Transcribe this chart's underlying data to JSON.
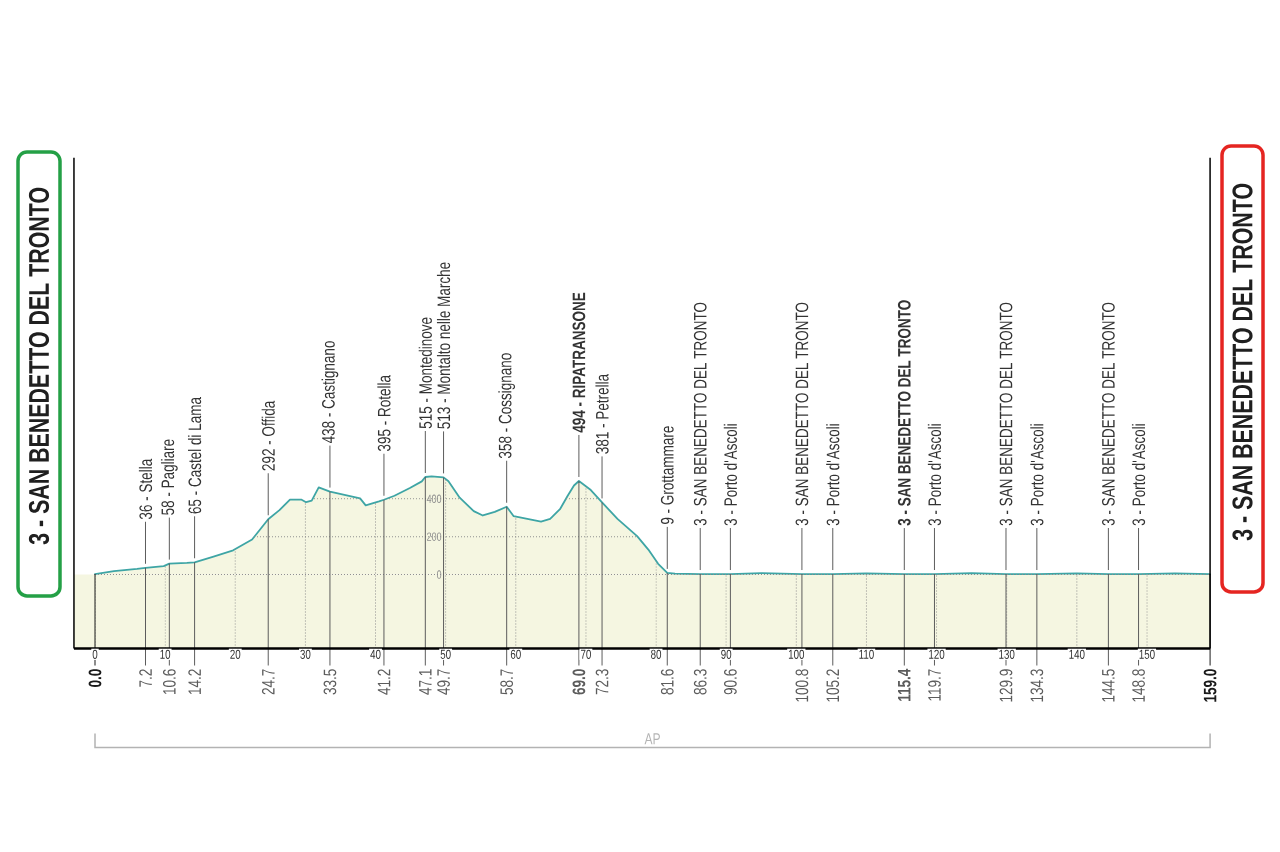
{
  "chart_data": {
    "type": "area",
    "x": [
      0,
      2.7,
      6.0,
      7.2,
      9.8,
      10.6,
      13.1,
      14.2,
      16.9,
      19.7,
      22.4,
      24.7,
      26.3,
      27.8,
      29.4,
      30.1,
      30.9,
      31.9,
      33.5,
      37.8,
      38.6,
      40.5,
      41.2,
      42.7,
      44.9,
      46.6,
      47.1,
      48.0,
      49.7,
      50.4,
      52.0,
      54.0,
      55.3,
      57.0,
      58.7,
      59.7,
      63.6,
      64.9,
      66.3,
      67.4,
      68.3,
      69.0,
      70.7,
      72.3,
      74.5,
      77.3,
      78.9,
      80.3,
      81.6,
      82.7,
      86.3,
      90.6,
      95.0,
      100.8,
      105.2,
      110.0,
      115.4,
      119.7,
      125.0,
      129.9,
      134.3,
      140.0,
      144.5,
      148.8,
      154.0,
      159.0
    ],
    "values": [
      3,
      18,
      30,
      36,
      45,
      58,
      62,
      65,
      95,
      128,
      185,
      292,
      340,
      396,
      396,
      382,
      390,
      460,
      438,
      402,
      365,
      386,
      395,
      416,
      457,
      492,
      515,
      518,
      513,
      493,
      406,
      335,
      312,
      331,
      358,
      308,
      280,
      294,
      345,
      416,
      470,
      494,
      446,
      381,
      294,
      203,
      132,
      57,
      9,
      5,
      3,
      3,
      8,
      3,
      3,
      6,
      3,
      3,
      8,
      3,
      3,
      6,
      3,
      3,
      6,
      3
    ],
    "color": "#3ea5a5",
    "xlim": [
      -3,
      159
    ],
    "ylim": [
      -390,
      2200
    ],
    "xticks": [
      0,
      10,
      20,
      30,
      40,
      50,
      60,
      70,
      80,
      90,
      100,
      110,
      120,
      130,
      140,
      150
    ],
    "yticks": [
      0,
      200,
      400
    ],
    "grid": true,
    "ref_lines": [
      {
        "axis": "x",
        "value": 0,
        "label": "**0.0**",
        "color": "#1a1a1a"
      },
      {
        "axis": "x",
        "value": 7.2,
        "label": "7.2",
        "color": "#5c5c5c"
      },
      {
        "axis": "x",
        "value": 10.6,
        "label": "10.6",
        "color": "#5c5c5c"
      },
      {
        "axis": "x",
        "value": 14.2,
        "label": "14.2",
        "color": "#5c5c5c"
      },
      {
        "axis": "x",
        "value": 24.7,
        "label": "24.7",
        "color": "#5c5c5c"
      },
      {
        "axis": "x",
        "value": 33.5,
        "label": "33.5",
        "color": "#5c5c5c"
      },
      {
        "axis": "x",
        "value": 41.2,
        "label": "41.2",
        "color": "#5c5c5c"
      },
      {
        "axis": "x",
        "value": 47.1,
        "label": "47.1",
        "color": "#5c5c5c"
      },
      {
        "axis": "x",
        "value": 49.7,
        "label": "49.7",
        "color": "#5c5c5c"
      },
      {
        "axis": "x",
        "value": 58.7,
        "label": "58.7",
        "color": "#5c5c5c"
      },
      {
        "axis": "x",
        "value": 69.0,
        "label": "**69.0**",
        "color": "#5c5c5c"
      },
      {
        "axis": "x",
        "value": 72.3,
        "label": "72.3",
        "color": "#5c5c5c"
      },
      {
        "axis": "x",
        "value": 81.6,
        "label": "81.6",
        "color": "#5c5c5c"
      },
      {
        "axis": "x",
        "value": 86.3,
        "label": "86.3",
        "color": "#5c5c5c"
      },
      {
        "axis": "x",
        "value": 90.6,
        "label": "90.6",
        "color": "#5c5c5c"
      },
      {
        "axis": "x",
        "value": 100.8,
        "label": "100.8",
        "color": "#5c5c5c"
      },
      {
        "axis": "x",
        "value": 105.2,
        "label": "105.2",
        "color": "#5c5c5c"
      },
      {
        "axis": "x",
        "value": 115.4,
        "label": "**115.4**",
        "color": "#5c5c5c"
      },
      {
        "axis": "x",
        "value": 119.7,
        "label": "119.7",
        "color": "#5c5c5c"
      },
      {
        "axis": "x",
        "value": 129.9,
        "label": "129.9",
        "color": "#5c5c5c"
      },
      {
        "axis": "x",
        "value": 134.3,
        "label": "134.3",
        "color": "#5c5c5c"
      },
      {
        "axis": "x",
        "value": 144.5,
        "label": "144.5",
        "color": "#5c5c5c"
      },
      {
        "axis": "x",
        "value": 148.8,
        "label": "148.8",
        "color": "#5c5c5c"
      },
      {
        "axis": "x",
        "value": 159.0,
        "label": "**159.0**",
        "color": "#1a1a1a"
      }
    ],
    "bands": [
      {
        "axis": "y",
        "from": -390,
        "to": 0,
        "color": "#f5f6e1"
      }
    ],
    "annotations": [
      "3 - SAN BENEDETTO DEL TRONTO",
      {
        "text": "36 - Stella",
        "x": 7.2,
        "y": 36
      },
      {
        "text": "58 - Pagliare",
        "x": 10.6,
        "y": 58
      },
      {
        "text": "65 - Castel di Lama",
        "x": 14.2,
        "y": 65
      },
      {
        "text": "292 - Offida",
        "x": 24.7,
        "y": 292
      },
      {
        "text": "438 - Castignano",
        "x": 33.5,
        "y": 438
      },
      {
        "text": "395 - Rotella",
        "x": 41.2,
        "y": 395
      },
      {
        "text": "515 - Montedinove",
        "x": 47.1,
        "y": 515
      },
      {
        "text": "513 - Montalto nelle Marche",
        "x": 49.7,
        "y": 513
      },
      {
        "text": "358 - Cossignano",
        "x": 58.7,
        "y": 358
      },
      {
        "text": "**494 - RIPATRANSONE**",
        "x": 69.0,
        "y": 494
      },
      {
        "text": "381 - Petrella",
        "x": 72.3,
        "y": 381
      },
      {
        "text": "9 - Grottammare",
        "x": 81.6,
        "y": 9
      },
      {
        "text": "3 - SAN BENEDETTO DEL TRONTO",
        "x": 86.3,
        "y": 3
      },
      {
        "text": "3 - Porto d'Ascoli",
        "x": 90.6,
        "y": 3
      },
      {
        "text": "3 - SAN BENEDETTO DEL TRONTO",
        "x": 100.8,
        "y": 3
      },
      {
        "text": "3 - Porto d'Ascoli",
        "x": 105.2,
        "y": 3
      },
      {
        "text": "**3 - SAN BENEDETTO DEL TRONTO**",
        "x": 115.4,
        "y": 3
      },
      {
        "text": "3 - Porto d'Ascoli",
        "x": 119.7,
        "y": 3
      },
      {
        "text": "3 - SAN BENEDETTO DEL TRONTO",
        "x": 129.9,
        "y": 3
      },
      {
        "text": "3 - Porto d'Ascoli",
        "x": 134.3,
        "y": 3
      },
      {
        "text": "3 - SAN BENEDETTO DEL TRONTO",
        "x": 144.5,
        "y": 3
      },
      {
        "text": "3 - Porto d'Ascoli",
        "x": 148.8,
        "y": 3
      },
      "3 - SAN BENEDETTO DEL TRONTO",
      "AP"
    ]
  }
}
